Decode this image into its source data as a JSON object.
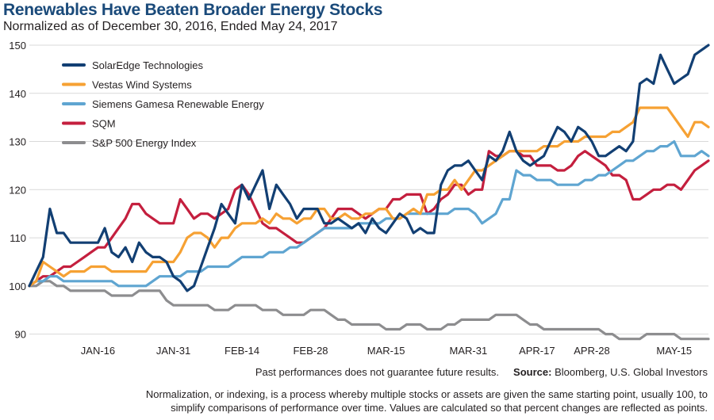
{
  "chart_data": {
    "type": "line",
    "title": "Renewables Have Beaten Broader Energy Stocks",
    "subtitle": "Normalized as of December 30, 2016, Ended May 24, 2017",
    "ylim": [
      85,
      150
    ],
    "yticks": [
      90,
      100,
      110,
      120,
      130,
      140,
      150
    ],
    "xticks": [
      {
        "label": "JAN-16",
        "index": 10
      },
      {
        "label": "JAN-31",
        "index": 21
      },
      {
        "label": "FEB-14",
        "index": 31
      },
      {
        "label": "FEB-28",
        "index": 41
      },
      {
        "label": "MAR-15",
        "index": 52
      },
      {
        "label": "MAR-31",
        "index": 64
      },
      {
        "label": "APR-17",
        "index": 74
      },
      {
        "label": "APR-28",
        "index": 82
      },
      {
        "label": "MAY-15",
        "index": 94
      }
    ],
    "n_points": 100,
    "legend_position": "top-left",
    "series": [
      {
        "name": "SolarEdge Technologies",
        "color": "#123f73",
        "values": [
          100,
          103,
          106,
          116,
          111,
          111,
          109,
          109,
          109,
          109,
          109,
          112,
          107,
          106,
          108,
          105,
          109,
          107,
          106,
          106,
          105,
          102,
          101,
          99,
          100,
          104,
          108,
          112,
          117,
          115,
          113,
          121,
          118,
          121,
          124,
          116,
          121,
          119,
          117,
          114,
          116,
          116,
          116,
          113,
          113,
          114,
          113,
          112,
          113,
          111,
          114,
          112,
          111,
          113,
          115,
          114,
          111,
          112,
          111,
          111,
          121,
          124,
          125,
          125,
          126,
          124,
          122,
          127,
          126,
          128,
          132,
          128,
          126,
          125,
          126,
          127,
          130,
          133,
          132,
          130,
          133,
          132,
          130,
          127,
          127,
          128,
          129,
          128,
          130,
          142,
          143,
          142,
          148,
          145,
          142,
          143,
          144,
          148,
          149,
          150
        ]
      },
      {
        "name": "Vestas Wind Systems",
        "color": "#f6a133",
        "values": [
          100,
          101,
          105,
          104,
          103,
          102,
          103,
          103,
          103,
          104,
          104,
          104,
          103,
          103,
          103,
          103,
          103,
          103,
          105,
          105,
          105,
          105,
          107,
          110,
          111,
          111,
          110,
          108,
          110,
          110,
          112,
          113,
          113,
          113,
          114,
          113,
          115,
          114,
          114,
          113,
          114,
          114,
          116,
          116,
          114,
          114,
          115,
          114,
          114,
          115,
          115,
          116,
          116,
          114,
          114,
          115,
          116,
          115,
          119,
          119,
          120,
          120,
          122,
          120,
          122,
          124,
          124,
          125,
          126,
          127,
          128,
          128,
          128,
          128,
          128,
          129,
          129,
          129,
          130,
          130,
          130,
          131,
          131,
          131,
          131,
          132,
          132,
          133,
          134,
          137,
          137,
          137,
          137,
          137,
          135,
          133,
          131,
          134,
          134,
          133
        ]
      },
      {
        "name": "Siemens Gamesa Renewable Energy",
        "color": "#5fa5d1",
        "values": [
          100,
          101,
          101,
          102,
          102,
          101,
          101,
          101,
          101,
          101,
          101,
          101,
          101,
          100,
          100,
          100,
          100,
          100,
          101,
          102,
          102,
          102,
          102,
          103,
          103,
          103,
          104,
          104,
          104,
          104,
          105,
          106,
          106,
          106,
          106,
          107,
          107,
          107,
          108,
          108,
          109,
          110,
          111,
          112,
          112,
          112,
          112,
          112,
          113,
          113,
          113,
          113,
          114,
          114,
          114,
          115,
          115,
          115,
          115,
          115,
          115,
          115,
          116,
          116,
          116,
          115,
          113,
          114,
          115,
          118,
          118,
          124,
          123,
          123,
          122,
          122,
          122,
          121,
          121,
          121,
          121,
          122,
          122,
          123,
          123,
          124,
          125,
          126,
          126,
          127,
          128,
          128,
          129,
          129,
          130,
          127,
          127,
          127,
          128,
          127
        ]
      },
      {
        "name": "SQM",
        "color": "#c41f3e",
        "values": [
          100,
          101,
          102,
          102,
          103,
          104,
          104,
          105,
          106,
          107,
          108,
          108,
          110,
          112,
          114,
          117,
          117,
          115,
          114,
          113,
          113,
          113,
          118,
          116,
          114,
          115,
          115,
          114,
          115,
          116,
          120,
          121,
          119,
          116,
          113,
          112,
          112,
          111,
          110,
          109,
          109,
          110,
          111,
          112,
          114,
          116,
          116,
          116,
          115,
          114,
          115,
          116,
          116,
          118,
          118,
          119,
          119,
          119,
          115,
          116,
          118,
          119,
          121,
          121,
          119,
          120,
          120,
          128,
          127,
          127,
          128,
          128,
          127,
          127,
          125,
          125,
          125,
          124,
          124,
          125,
          127,
          128,
          127,
          126,
          125,
          123,
          123,
          122,
          118,
          118,
          119,
          120,
          120,
          121,
          121,
          120,
          122,
          124,
          125,
          126
        ]
      },
      {
        "name": "S&P 500 Energy Index",
        "color": "#8d8d8f",
        "values": [
          100,
          100,
          101,
          101,
          100,
          100,
          99,
          99,
          99,
          99,
          99,
          99,
          98,
          98,
          98,
          98,
          99,
          99,
          99,
          99,
          97,
          96,
          96,
          96,
          96,
          96,
          96,
          95,
          95,
          95,
          96,
          96,
          96,
          96,
          95,
          95,
          95,
          94,
          94,
          94,
          94,
          95,
          95,
          95,
          94,
          93,
          93,
          92,
          92,
          92,
          92,
          92,
          91,
          91,
          91,
          92,
          92,
          92,
          91,
          91,
          91,
          92,
          92,
          93,
          93,
          93,
          93,
          93,
          94,
          94,
          94,
          94,
          93,
          92,
          92,
          91,
          91,
          91,
          91,
          91,
          91,
          91,
          91,
          91,
          90,
          90,
          89,
          89,
          89,
          89,
          90,
          90,
          90,
          90,
          90,
          89,
          89,
          89,
          89,
          89
        ]
      }
    ]
  },
  "footer": {
    "disclaimer": "Past performances does not guarantee future results.",
    "source_label": "Source:",
    "source_text": "Bloomberg, U.S. Global Investors",
    "note_line1": "Normalization, or indexing, is a process whereby multiple stocks or assets are given the same starting point, usually 100, to",
    "note_line2": "simplify comparisons of performance over time. Values are calculated so that percent changes are reflected as points."
  }
}
